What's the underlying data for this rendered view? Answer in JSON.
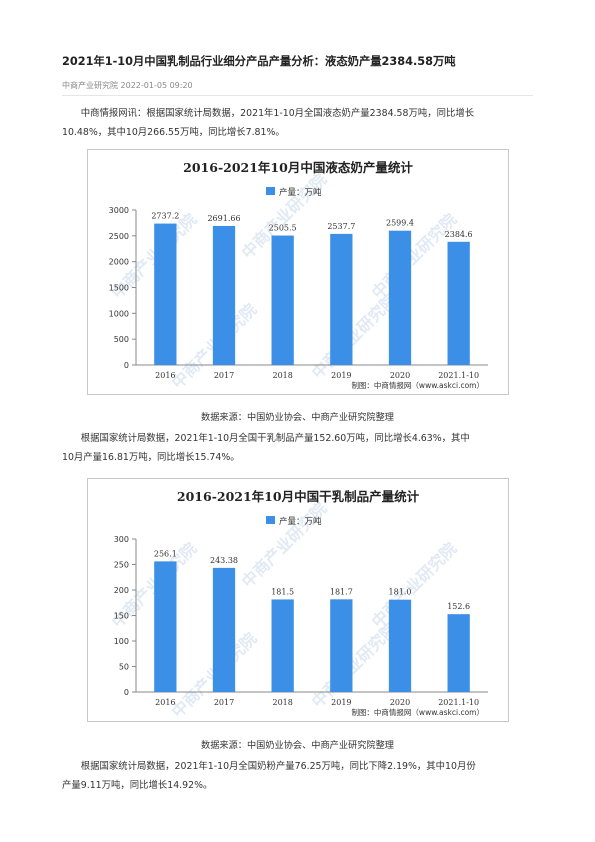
{
  "article": {
    "title": "2021年1-10月中国乳制品行业细分产品产量分析：液态奶产量2384.58万吨",
    "source_line": "中商产业研究院 2022-01-05 09:20",
    "para1_line1": "中商情报网讯：根据国家统计局数据，2021年1-10月全国液态奶产量2384.58万吨，同比增长",
    "para1_line2": "10.48%，其中10月266.55万吨，同比增长7.81%。",
    "caption1": "数据来源：中国奶业协会、中商产业研究院整理",
    "para2_line1": "根据国家统计局数据，2021年1-10月全国干乳制品产量152.60万吨，同比增长4.63%，其中",
    "para2_line2": "10月产量16.81万吨，同比增长15.74%。",
    "caption2": "数据来源：中国奶业协会、中商产业研究院整理",
    "para3_line1": "根据国家统计局数据，2021年1-10月全国奶粉产量76.25万吨，同比下降2.19%，其中10月份",
    "para3_line2": "产量9.11万吨，同比增长14.92%。"
  },
  "watermark_text": "中商产业研究院",
  "colors": {
    "bar": "#3b8fe6",
    "axis": "#888888",
    "label": "#333333",
    "watermark": "#c9d9ec"
  },
  "chart_data": [
    {
      "type": "bar",
      "title": "2016-2021年10月中国液态奶产量统计",
      "legend": "产量：万吨",
      "categories": [
        "2016",
        "2017",
        "2018",
        "2019",
        "2020",
        "2021.1-10"
      ],
      "values": [
        2737.2,
        2691.66,
        2505.5,
        2537.7,
        2599.4,
        2384.6
      ],
      "value_labels": [
        "2737.2",
        "2691.66",
        "2505.5",
        "2537.7",
        "2599.4",
        "2384.6"
      ],
      "ylim": [
        0,
        3000
      ],
      "yticks": [
        "0",
        "500",
        "1000",
        "1500",
        "2000",
        "2500",
        "3000"
      ],
      "credit": "制图：中商情报网（www.askci.com）",
      "xlabel": "",
      "ylabel": ""
    },
    {
      "type": "bar",
      "title": "2016-2021年10月中国干乳制品产量统计",
      "legend": "产量：万吨",
      "categories": [
        "2016",
        "2017",
        "2018",
        "2019",
        "2020",
        "2021.1-10"
      ],
      "values": [
        256.1,
        243.38,
        181.5,
        181.7,
        181.0,
        152.6
      ],
      "value_labels": [
        "256.1",
        "243.38",
        "181.5",
        "181.7",
        "181.0",
        "152.6"
      ],
      "ylim": [
        0,
        300
      ],
      "yticks": [
        "0",
        "50",
        "100",
        "150",
        "200",
        "250",
        "300"
      ],
      "credit": "制图：中商情报网（www.askci.com）",
      "xlabel": "",
      "ylabel": ""
    }
  ]
}
